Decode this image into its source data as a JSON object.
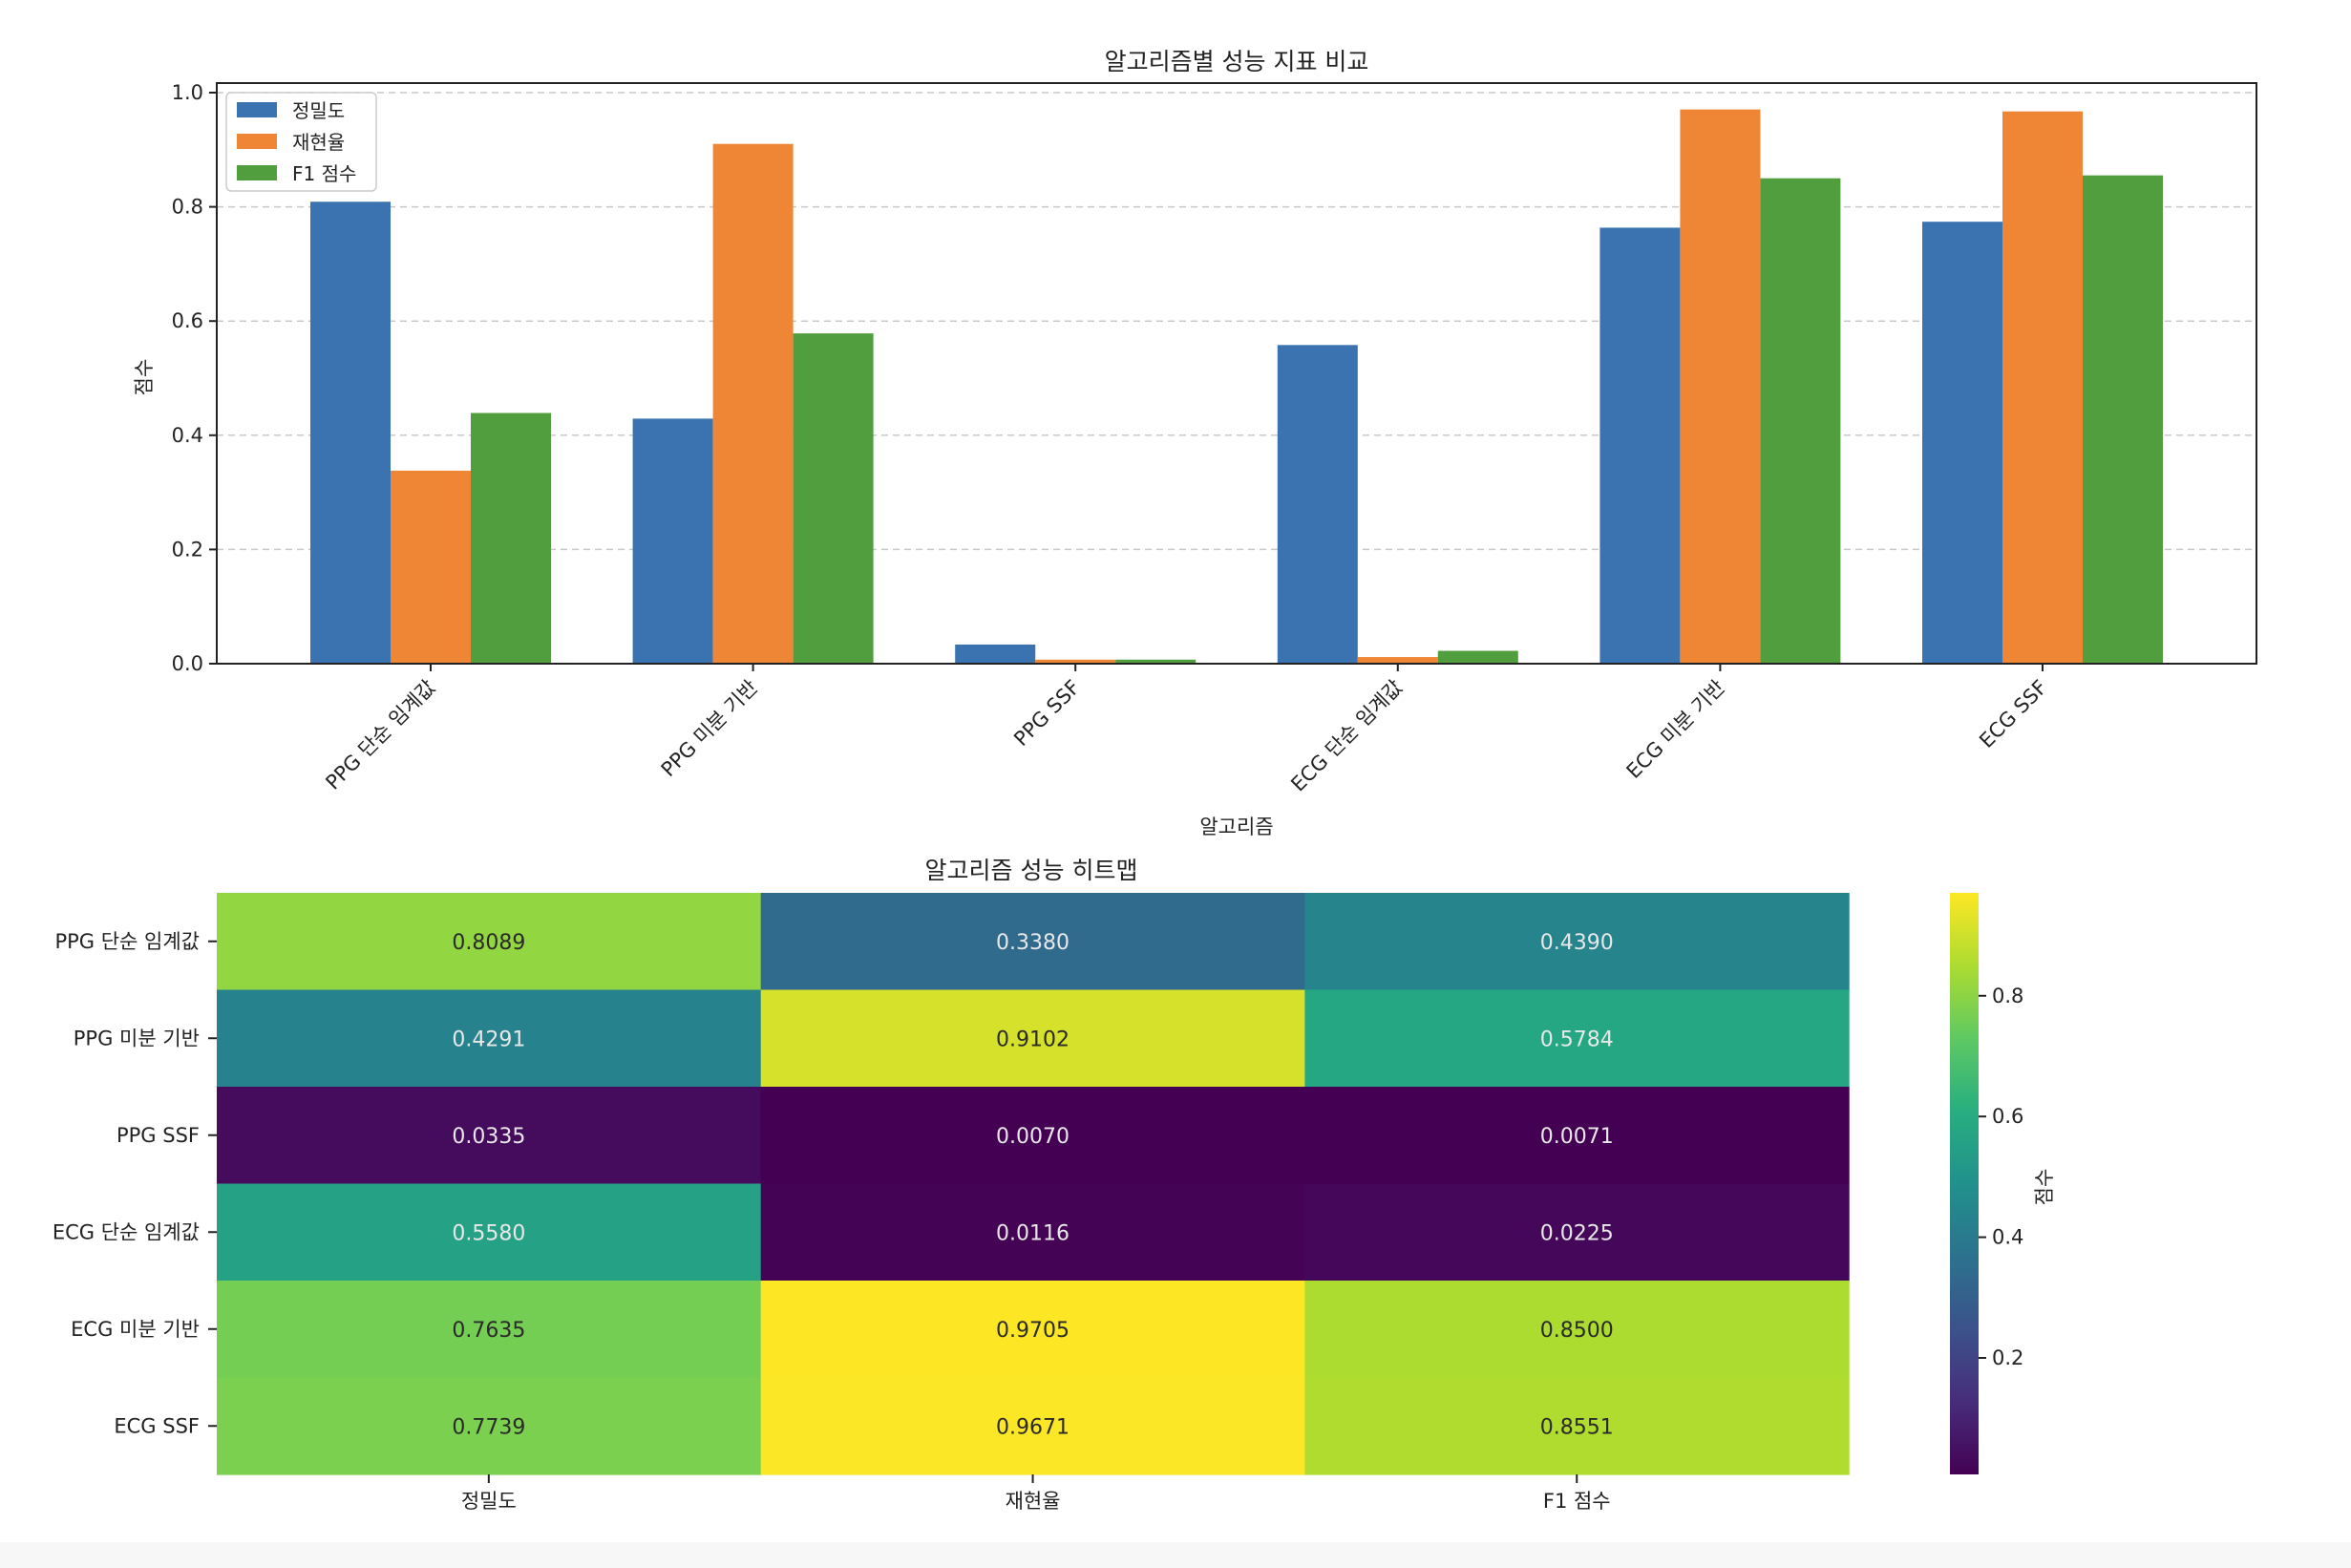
{
  "chart_data": [
    {
      "type": "bar",
      "title": "알고리즘별 성능 지표 비교",
      "xlabel": "알고리즘",
      "ylabel": "점수",
      "ylim": [
        0,
        1.0
      ],
      "yticks": [
        "0.0",
        "0.2",
        "0.4",
        "0.6",
        "0.8",
        "1.0"
      ],
      "grid": "y-dashed",
      "legend_position": "top-left",
      "categories": [
        "PPG 단순 임계값",
        "PPG 미분 기반",
        "PPG SSF",
        "ECG 단순 임계값",
        "ECG 미분 기반",
        "ECG SSF"
      ],
      "series": [
        {
          "name": "정밀도",
          "color": "#3a73b0",
          "values": [
            0.8089,
            0.4291,
            0.0335,
            0.558,
            0.7635,
            0.7739
          ]
        },
        {
          "name": "재현율",
          "color": "#ef8636",
          "values": [
            0.338,
            0.9102,
            0.007,
            0.0116,
            0.9705,
            0.9671
          ]
        },
        {
          "name": "F1 점수",
          "color": "#519e3e",
          "values": [
            0.439,
            0.5784,
            0.0071,
            0.0225,
            0.85,
            0.8551
          ]
        }
      ]
    },
    {
      "type": "heatmap",
      "title": "알고리즘 성능 히트맵",
      "rows": [
        "PPG 단순 임계값",
        "PPG 미분 기반",
        "PPG SSF",
        "ECG 단순 임계값",
        "ECG 미분 기반",
        "ECG SSF"
      ],
      "columns": [
        "정밀도",
        "재현율",
        "F1 점수"
      ],
      "values": [
        [
          0.8089,
          0.338,
          0.439
        ],
        [
          0.4291,
          0.9102,
          0.5784
        ],
        [
          0.0335,
          0.007,
          0.0071
        ],
        [
          0.558,
          0.0116,
          0.0225
        ],
        [
          0.7635,
          0.9705,
          0.85
        ],
        [
          0.7739,
          0.9671,
          0.8551
        ]
      ],
      "cell_labels": [
        [
          "0.8089",
          "0.3380",
          "0.4390"
        ],
        [
          "0.4291",
          "0.9102",
          "0.5784"
        ],
        [
          "0.0335",
          "0.0070",
          "0.0071"
        ],
        [
          "0.5580",
          "0.0116",
          "0.0225"
        ],
        [
          "0.7635",
          "0.9705",
          "0.8500"
        ],
        [
          "0.7739",
          "0.9671",
          "0.8551"
        ]
      ],
      "colormap": "viridis",
      "colorbar": {
        "label": "점수",
        "range": [
          0.007,
          0.9705
        ],
        "ticks": [
          "0.2",
          "0.4",
          "0.6",
          "0.8"
        ]
      }
    }
  ]
}
